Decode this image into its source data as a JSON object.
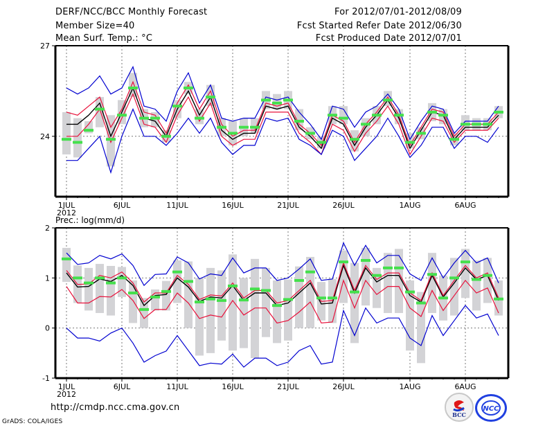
{
  "header": {
    "title": "DERF/NCC/BCC Monthly Forecast",
    "member_size": "Member Size=40",
    "variable": "Mean Surf. Temp.: °C",
    "period": "For 2012/07/01-2012/08/09",
    "start_date": "Fcst Started Refer Date 2012/06/30",
    "produced_date": "Fcst Produced Date 2012/07/01"
  },
  "footer": {
    "url": "http://cmdp.ncc.cma.gov.cn",
    "credit": "GrADS: COLA/IGES",
    "logo_left": "BCC",
    "logo_right": "NCC"
  },
  "colors": {
    "mean": "#000000",
    "spread": "#e8103a",
    "range": "#0000d0",
    "box": "#d3d3d6",
    "median": "#44e04c"
  },
  "chart_data": [
    {
      "type": "line",
      "title": "Mean Surf. Temp.: °C",
      "xlabel": "",
      "ylabel": "°C",
      "ylim": [
        22,
        27
      ],
      "yticks": [
        24,
        27
      ],
      "xticks": [
        {
          "day": 1,
          "label": "1JUL"
        },
        {
          "day": 6,
          "label": "6JUL"
        },
        {
          "day": 11,
          "label": "11JUL"
        },
        {
          "day": 16,
          "label": "16JUL"
        },
        {
          "day": 21,
          "label": "21JUL"
        },
        {
          "day": 26,
          "label": "26JUL"
        },
        {
          "day": 32,
          "label": "1AUG"
        },
        {
          "day": 37,
          "label": "6AUG"
        }
      ],
      "xsublabel": "2012",
      "grid": true,
      "x": [
        1,
        2,
        3,
        4,
        5,
        6,
        7,
        8,
        9,
        10,
        11,
        12,
        13,
        14,
        15,
        16,
        17,
        18,
        19,
        20,
        21,
        22,
        23,
        24,
        25,
        26,
        27,
        28,
        29,
        30,
        31,
        32,
        33,
        34,
        35,
        36,
        37,
        38,
        39,
        40
      ],
      "series": [
        {
          "name": "ensemble-mean",
          "values": [
            24.4,
            24.4,
            24.7,
            25.1,
            24.0,
            24.8,
            25.6,
            24.6,
            24.5,
            24.0,
            24.9,
            25.5,
            24.7,
            25.3,
            24.2,
            23.9,
            24.1,
            24.1,
            25.0,
            24.9,
            25.0,
            24.3,
            24.0,
            23.6,
            24.6,
            24.4,
            23.7,
            24.3,
            24.7,
            25.2,
            24.6,
            23.6,
            24.2,
            24.8,
            24.7,
            23.9,
            24.3,
            24.3,
            24.3,
            24.7
          ]
        },
        {
          "name": "spread-upper",
          "values": [
            24.8,
            24.7,
            25.0,
            25.3,
            24.3,
            24.9,
            25.8,
            24.8,
            24.7,
            24.1,
            25.1,
            25.7,
            24.9,
            25.5,
            24.4,
            24.0,
            24.2,
            24.2,
            25.1,
            25.0,
            25.1,
            24.4,
            24.1,
            23.7,
            24.7,
            24.5,
            23.8,
            24.4,
            24.8,
            25.3,
            24.7,
            23.7,
            24.3,
            24.9,
            24.8,
            24.0,
            24.4,
            24.4,
            24.4,
            24.8
          ]
        },
        {
          "name": "spread-lower",
          "values": [
            24.0,
            24.0,
            24.4,
            24.9,
            23.8,
            24.6,
            25.4,
            24.4,
            24.3,
            23.8,
            24.7,
            25.3,
            24.5,
            25.1,
            24.0,
            23.7,
            23.9,
            23.9,
            24.8,
            24.8,
            24.8,
            24.1,
            23.8,
            23.4,
            24.4,
            24.2,
            23.5,
            24.1,
            24.5,
            25.0,
            24.4,
            23.4,
            24.0,
            24.6,
            24.5,
            23.8,
            24.2,
            24.2,
            24.2,
            24.6
          ]
        },
        {
          "name": "range-max",
          "values": [
            25.6,
            25.4,
            25.6,
            26.0,
            25.4,
            25.6,
            26.3,
            25.0,
            24.9,
            24.5,
            25.5,
            26.1,
            25.1,
            25.7,
            24.6,
            24.5,
            24.6,
            24.6,
            25.3,
            25.2,
            25.3,
            24.8,
            24.4,
            23.9,
            25.0,
            24.9,
            24.3,
            24.8,
            25.0,
            25.4,
            24.9,
            23.9,
            24.5,
            25.0,
            24.9,
            24.1,
            24.5,
            24.5,
            24.5,
            25.0
          ]
        },
        {
          "name": "range-min",
          "values": [
            23.2,
            23.2,
            23.6,
            24.0,
            22.8,
            24.0,
            24.9,
            24.0,
            24.0,
            23.7,
            24.1,
            24.6,
            24.1,
            24.6,
            23.8,
            23.4,
            23.7,
            23.7,
            24.6,
            24.5,
            24.6,
            23.9,
            23.7,
            23.4,
            24.2,
            24.0,
            23.2,
            23.6,
            24.0,
            24.6,
            24.0,
            23.3,
            23.7,
            24.3,
            24.3,
            23.6,
            24.0,
            24.0,
            23.8,
            24.3
          ]
        }
      ],
      "boxes": {
        "median": [
          23.9,
          23.8,
          24.2,
          24.9,
          23.9,
          24.7,
          25.6,
          24.6,
          24.6,
          24.0,
          25.0,
          25.6,
          24.6,
          25.3,
          24.3,
          24.1,
          24.3,
          24.3,
          25.2,
          25.1,
          25.2,
          24.5,
          24.1,
          23.8,
          24.7,
          24.6,
          23.9,
          24.4,
          24.7,
          25.2,
          24.7,
          23.8,
          24.1,
          24.8,
          24.7,
          23.9,
          24.4,
          24.4,
          24.4,
          24.8
        ],
        "top": [
          24.8,
          24.6,
          24.5,
          25.3,
          24.7,
          25.2,
          26.1,
          24.9,
          24.8,
          24.2,
          25.2,
          25.8,
          24.9,
          25.7,
          24.6,
          24.5,
          24.6,
          24.6,
          25.5,
          25.4,
          25.5,
          24.9,
          24.3,
          24.0,
          25.0,
          25.0,
          24.2,
          24.6,
          25.0,
          25.5,
          24.9,
          24.1,
          24.3,
          25.1,
          24.9,
          24.1,
          24.7,
          24.6,
          24.6,
          25.0
        ],
        "bottom": [
          23.4,
          23.3,
          24.1,
          24.3,
          23.0,
          24.4,
          25.3,
          24.3,
          24.3,
          23.8,
          24.6,
          25.4,
          24.4,
          25.0,
          24.0,
          23.7,
          24.0,
          24.1,
          24.9,
          24.9,
          24.9,
          24.2,
          23.9,
          23.6,
          24.4,
          24.4,
          23.5,
          24.0,
          24.4,
          25.0,
          24.4,
          23.6,
          23.9,
          24.5,
          24.4,
          23.7,
          24.2,
          24.2,
          24.2,
          24.6
        ]
      }
    },
    {
      "type": "line",
      "title": "Prec.: log(mm/d)",
      "xlabel": "",
      "ylabel": "log(mm/d)",
      "ylim": [
        -1,
        2
      ],
      "yticks": [
        -1,
        0,
        1,
        2
      ],
      "xticks": [
        {
          "day": 1,
          "label": "1JUL"
        },
        {
          "day": 6,
          "label": "6JUL"
        },
        {
          "day": 11,
          "label": "11JUL"
        },
        {
          "day": 16,
          "label": "16JUL"
        },
        {
          "day": 21,
          "label": "21JUL"
        },
        {
          "day": 26,
          "label": "26JUL"
        },
        {
          "day": 32,
          "label": "1AUG"
        },
        {
          "day": 37,
          "label": "6AUG"
        }
      ],
      "xsublabel": "2012",
      "grid": true,
      "x": [
        1,
        2,
        3,
        4,
        5,
        6,
        7,
        8,
        9,
        10,
        11,
        12,
        13,
        14,
        15,
        16,
        17,
        18,
        19,
        20,
        21,
        22,
        23,
        24,
        25,
        26,
        27,
        28,
        29,
        30,
        31,
        32,
        33,
        34,
        35,
        36,
        37,
        38,
        39,
        40
      ],
      "series": [
        {
          "name": "ensemble-mean",
          "values": [
            1.1,
            0.82,
            0.83,
            0.98,
            0.93,
            1.05,
            0.85,
            0.45,
            0.65,
            0.67,
            1.0,
            0.82,
            0.53,
            0.62,
            0.6,
            0.85,
            0.55,
            0.7,
            0.7,
            0.45,
            0.5,
            0.7,
            0.9,
            0.48,
            0.5,
            1.25,
            0.7,
            1.2,
            0.92,
            1.05,
            1.05,
            0.65,
            0.52,
            1.05,
            0.62,
            0.9,
            1.2,
            0.97,
            1.05,
            0.55
          ]
        },
        {
          "name": "spread-upper",
          "values": [
            1.15,
            0.87,
            0.88,
            1.05,
            1.0,
            1.12,
            0.9,
            0.52,
            0.7,
            0.7,
            1.05,
            0.87,
            0.57,
            0.66,
            0.64,
            0.9,
            0.6,
            0.75,
            0.75,
            0.5,
            0.55,
            0.75,
            0.95,
            0.53,
            0.55,
            1.3,
            0.75,
            1.25,
            0.97,
            1.1,
            1.1,
            0.7,
            0.55,
            1.1,
            0.65,
            0.95,
            1.25,
            1.0,
            1.1,
            0.6
          ]
        },
        {
          "name": "spread-lower",
          "values": [
            0.83,
            0.5,
            0.5,
            0.63,
            0.62,
            0.77,
            0.55,
            0.19,
            0.37,
            0.37,
            0.7,
            0.5,
            0.19,
            0.26,
            0.22,
            0.55,
            0.26,
            0.4,
            0.4,
            0.1,
            0.15,
            0.32,
            0.52,
            0.1,
            0.12,
            0.95,
            0.4,
            0.95,
            0.67,
            0.83,
            0.83,
            0.4,
            0.23,
            0.75,
            0.35,
            0.65,
            0.95,
            0.7,
            0.8,
            0.3
          ]
        },
        {
          "name": "range-max",
          "values": [
            1.5,
            1.27,
            1.3,
            1.45,
            1.38,
            1.48,
            1.25,
            0.85,
            1.07,
            1.08,
            1.42,
            1.3,
            0.98,
            1.08,
            1.05,
            1.4,
            1.1,
            1.2,
            1.2,
            0.95,
            1.0,
            1.18,
            1.38,
            0.95,
            0.98,
            1.7,
            1.25,
            1.65,
            1.3,
            1.45,
            1.45,
            1.08,
            0.95,
            1.4,
            1.0,
            1.3,
            1.55,
            1.3,
            1.4,
            0.9
          ]
        },
        {
          "name": "range-min",
          "values": [
            0.0,
            -0.2,
            -0.2,
            -0.26,
            -0.1,
            0.0,
            -0.3,
            -0.68,
            -0.55,
            -0.46,
            -0.15,
            -0.45,
            -0.75,
            -0.7,
            -0.72,
            -0.52,
            -0.78,
            -0.6,
            -0.6,
            -0.75,
            -0.68,
            -0.45,
            -0.35,
            -0.72,
            -0.68,
            0.35,
            -0.15,
            0.4,
            0.1,
            0.2,
            0.2,
            -0.2,
            -0.35,
            0.25,
            -0.15,
            0.15,
            0.45,
            0.2,
            0.28,
            -0.15
          ]
        }
      ],
      "boxes": {
        "median": [
          1.38,
          1.0,
          0.9,
          1.0,
          0.9,
          1.0,
          0.7,
          0.37,
          0.62,
          0.73,
          1.12,
          0.93,
          0.52,
          0.58,
          0.55,
          0.84,
          0.56,
          0.78,
          0.75,
          0.45,
          0.57,
          0.95,
          1.12,
          0.6,
          0.6,
          1.32,
          0.72,
          1.35,
          1.05,
          1.2,
          1.2,
          0.72,
          0.5,
          1.07,
          0.6,
          1.0,
          1.32,
          0.97,
          1.05,
          0.58
        ],
        "top": [
          1.6,
          1.25,
          1.2,
          1.28,
          1.24,
          1.22,
          0.95,
          0.6,
          0.77,
          0.94,
          1.35,
          1.33,
          1.0,
          1.2,
          1.15,
          1.47,
          1.0,
          1.38,
          1.2,
          0.95,
          0.97,
          1.23,
          1.42,
          0.92,
          0.98,
          1.55,
          1.3,
          1.6,
          1.2,
          1.5,
          1.58,
          0.95,
          0.72,
          1.5,
          1.05,
          1.4,
          1.58,
          1.35,
          1.4,
          0.95
        ],
        "bottom": [
          0.92,
          0.5,
          0.35,
          0.3,
          0.25,
          0.62,
          0.1,
          0.0,
          0.35,
          0.35,
          0.5,
          0.0,
          -0.55,
          -0.5,
          -0.25,
          -0.45,
          -0.4,
          -0.6,
          -0.18,
          -0.3,
          -0.25,
          0.0,
          0.0,
          0.15,
          0.1,
          0.5,
          -0.3,
          0.45,
          0.4,
          0.3,
          0.3,
          -0.45,
          -0.7,
          0.3,
          0.15,
          0.25,
          0.6,
          0.35,
          0.5,
          0.25
        ]
      }
    }
  ]
}
